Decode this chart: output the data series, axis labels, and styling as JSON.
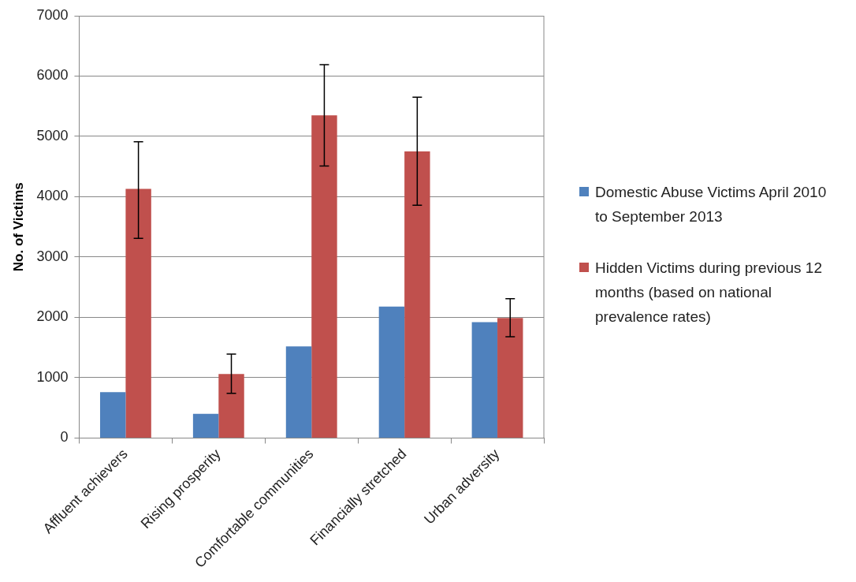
{
  "chart_data": {
    "type": "bar",
    "ylabel": "No. of Victims",
    "categories": [
      "Affluent achievers",
      "Rising prosperity",
      "Comfortable communities",
      "Financially stretched",
      "Urban adversity"
    ],
    "series": [
      {
        "name": "Domestic Abuse Victims April 2010 to September 2013",
        "color": "#4f81bd",
        "values": [
          760,
          400,
          1520,
          2180,
          1920
        ]
      },
      {
        "name": "Hidden Victims during previous 12 months (based on national prevalence rates)",
        "color": "#c0504d",
        "values": [
          4130,
          1060,
          5350,
          4750,
          1990
        ],
        "errors": [
          [
            3310,
            4910
          ],
          [
            740,
            1390
          ],
          [
            4510,
            6190
          ],
          [
            3860,
            5650
          ],
          [
            1680,
            2310
          ]
        ]
      }
    ],
    "ylim": [
      0,
      7000
    ],
    "yticks": [
      0,
      1000,
      2000,
      3000,
      4000,
      5000,
      6000,
      7000
    ],
    "grid": "y",
    "legend": "right"
  }
}
